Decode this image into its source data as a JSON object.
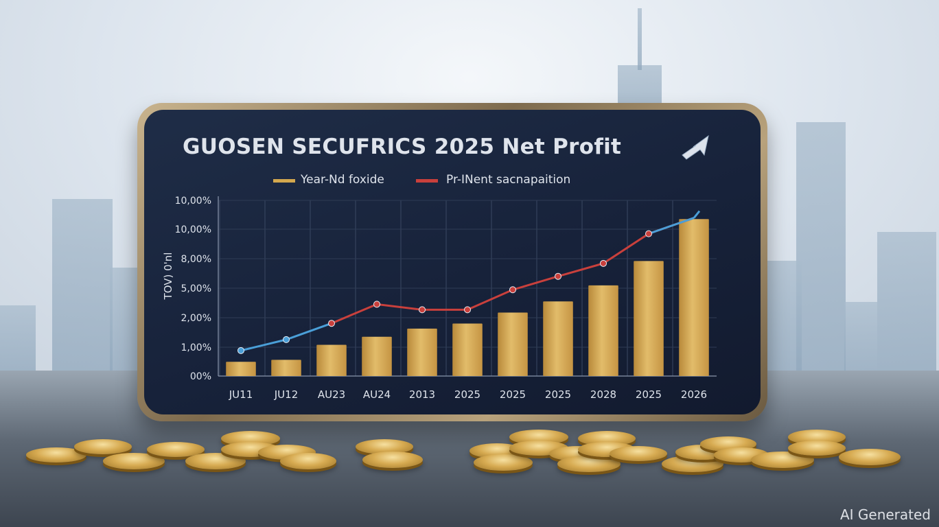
{
  "colors": {
    "bar": "#d4a84e",
    "line_start": "#4a9fd8",
    "line_end": "#c9403c",
    "screen_bg": "#1b2740",
    "frame": "#a8936c",
    "text": "#dfe4ec"
  },
  "icons": {
    "trend_arrow": "arrow-up-right-icon"
  },
  "watermark": "AI Generated",
  "chart_data": {
    "type": "bar",
    "title": "GUOSEN SECUFRICS 2025 Net Profit",
    "legend_position": "top",
    "ylabel": "TOV) 0'nl",
    "xlabel": "",
    "grid": true,
    "categories": [
      "JU11",
      "JU12",
      "AU23",
      "AU24",
      "2013",
      "2025",
      "2025",
      "2025",
      "2028",
      "2025",
      "2026"
    ],
    "y_tick_labels": [
      "00%",
      "1,00%",
      "2,00%",
      "5,00%",
      "8,00%",
      "10,00%",
      "10,00%"
    ],
    "series": [
      {
        "name": "Year-Nd foxide",
        "type": "bar",
        "values": [
          6.5,
          7.4,
          14.2,
          17.9,
          21.6,
          23.9,
          28.9,
          34.0,
          41.3,
          52.4,
          71.5
        ]
      },
      {
        "name": "Pr-INent sacnapaition",
        "type": "line",
        "values": [
          11.6,
          16.6,
          24.0,
          32.7,
          30.2,
          30.2,
          39.3,
          45.4,
          51.3,
          64.8,
          72.0
        ]
      }
    ]
  }
}
